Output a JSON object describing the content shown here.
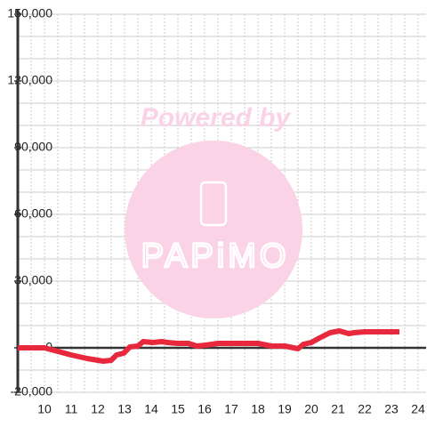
{
  "chart_data": {
    "type": "line",
    "x": [
      9,
      10,
      10.5,
      11,
      11.6,
      12.2,
      12.5,
      12.7,
      12.97,
      13.2,
      13.5,
      13.7,
      14.05,
      14.4,
      14.6,
      15,
      15.4,
      15.7,
      16.05,
      16.5,
      17,
      18,
      18.5,
      19,
      19.5,
      19.7,
      20,
      20.3,
      20.7,
      21.05,
      21.4,
      21.6,
      22,
      23.3
    ],
    "series": [
      {
        "color": "#e8283c",
        "values": [
          0,
          0,
          -1600,
          -3200,
          -4800,
          -6000,
          -5600,
          -3200,
          -2400,
          400,
          800,
          2800,
          2400,
          2800,
          2400,
          2000,
          2000,
          800,
          1200,
          2000,
          2000,
          2000,
          800,
          800,
          -400,
          1600,
          2400,
          4400,
          6800,
          7600,
          6400,
          6800,
          7200,
          7200
        ]
      }
    ],
    "xlim": [
      9,
      24.3
    ],
    "xticks": [
      10,
      11,
      12,
      13,
      14,
      15,
      16,
      17,
      18,
      19,
      20,
      21,
      22,
      23,
      24
    ],
    "minor_xticks": [
      9.5,
      10.5,
      11.5,
      12.5,
      13.5,
      14.5,
      15.5,
      16.5,
      17.5,
      18.5,
      19.5,
      20.5,
      21.5,
      22.5,
      23.5
    ],
    "ylim": [
      -20000,
      150000
    ],
    "yticks": [
      {
        "value": -20000,
        "label": "-20,000"
      },
      0,
      {
        "value": 30000,
        "label": "30,000"
      },
      {
        "value": 60000,
        "label": "60,000"
      },
      {
        "value": 90000,
        "label": "90,000"
      },
      {
        "value": 120000,
        "label": "120,000"
      },
      {
        "value": 150000,
        "label": "150,000"
      }
    ],
    "minor_yticks": [
      -10000,
      10000,
      20000,
      40000,
      50000,
      70000,
      80000,
      100000,
      110000,
      130000,
      140000
    ],
    "grid": true,
    "watermark": {
      "line1": "Powered by",
      "line2": "PAPiMO"
    }
  }
}
